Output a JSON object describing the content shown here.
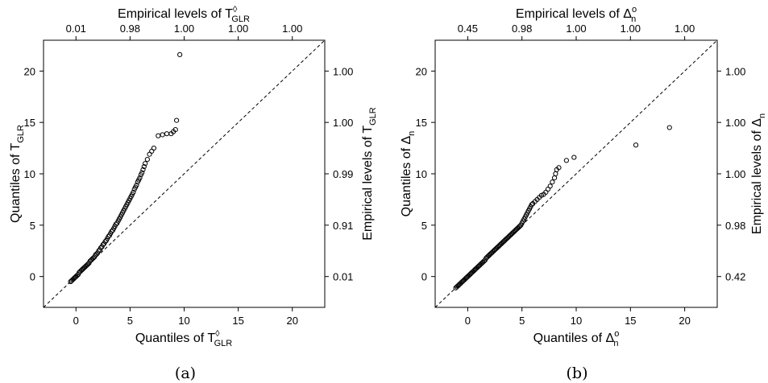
{
  "chart_data": [
    {
      "type": "scatter",
      "panel_label": "(a)",
      "xlabel": "Quantiles of T",
      "xlabel_sup": "◊",
      "xlabel_sub": "GLR",
      "ylabel": "Quantiles of T",
      "ylabel_sub": "GLR",
      "top_axis_label": "Empirical levels of T",
      "top_axis_sup": "◊",
      "top_axis_sub": "GLR",
      "right_axis_label": "Empirical levels of T",
      "right_axis_sub": "GLR",
      "xlim": [
        -3,
        23
      ],
      "ylim": [
        -3,
        23
      ],
      "x_ticks": [
        0,
        5,
        10,
        15,
        20
      ],
      "y_ticks": [
        0,
        5,
        10,
        15,
        20
      ],
      "x_tick_labels": [
        "0",
        "5",
        "10",
        "15",
        "20"
      ],
      "y_tick_labels": [
        "0",
        "5",
        "10",
        "15",
        "20"
      ],
      "top_tick_labels": [
        "0.01",
        "0.98",
        "1.00",
        "1.00",
        "1.00"
      ],
      "right_tick_labels": [
        "0.01",
        "0.91",
        "0.99",
        "1.00",
        "1.00"
      ],
      "reference_line": "y = x (dashed)",
      "points": [
        [
          -0.5,
          -0.5
        ],
        [
          -0.4,
          -0.4
        ],
        [
          -0.3,
          -0.3
        ],
        [
          -0.2,
          -0.2
        ],
        [
          -0.1,
          -0.1
        ],
        [
          0.0,
          0.0
        ],
        [
          0.1,
          0.1
        ],
        [
          0.2,
          0.2
        ],
        [
          0.3,
          0.4
        ],
        [
          0.4,
          0.5
        ],
        [
          0.5,
          0.6
        ],
        [
          0.6,
          0.7
        ],
        [
          0.7,
          0.8
        ],
        [
          0.8,
          0.9
        ],
        [
          0.9,
          1.0
        ],
        [
          1.0,
          1.1
        ],
        [
          1.1,
          1.2
        ],
        [
          1.2,
          1.3
        ],
        [
          1.3,
          1.5
        ],
        [
          1.4,
          1.6
        ],
        [
          1.5,
          1.7
        ],
        [
          1.6,
          1.8
        ],
        [
          1.7,
          1.9
        ],
        [
          1.8,
          2.1
        ],
        [
          1.9,
          2.2
        ],
        [
          2.0,
          2.3
        ],
        [
          2.1,
          2.5
        ],
        [
          2.2,
          2.6
        ],
        [
          2.3,
          2.8
        ],
        [
          2.4,
          2.9
        ],
        [
          2.5,
          3.1
        ],
        [
          2.6,
          3.2
        ],
        [
          2.7,
          3.4
        ],
        [
          2.8,
          3.5
        ],
        [
          2.9,
          3.7
        ],
        [
          3.0,
          3.9
        ],
        [
          3.1,
          4.0
        ],
        [
          3.2,
          4.2
        ],
        [
          3.3,
          4.4
        ],
        [
          3.4,
          4.5
        ],
        [
          3.5,
          4.7
        ],
        [
          3.6,
          4.9
        ],
        [
          3.7,
          5.1
        ],
        [
          3.8,
          5.2
        ],
        [
          3.9,
          5.4
        ],
        [
          4.0,
          5.6
        ],
        [
          4.1,
          5.8
        ],
        [
          4.2,
          6.0
        ],
        [
          4.3,
          6.2
        ],
        [
          4.4,
          6.4
        ],
        [
          4.5,
          6.6
        ],
        [
          4.6,
          6.8
        ],
        [
          4.7,
          7.0
        ],
        [
          4.8,
          7.2
        ],
        [
          4.9,
          7.4
        ],
        [
          5.0,
          7.6
        ],
        [
          5.1,
          7.8
        ],
        [
          5.2,
          8.0
        ],
        [
          5.3,
          8.2
        ],
        [
          5.4,
          8.5
        ],
        [
          5.5,
          8.7
        ],
        [
          5.6,
          8.9
        ],
        [
          5.7,
          9.2
        ],
        [
          5.8,
          9.4
        ],
        [
          5.9,
          9.6
        ],
        [
          6.0,
          9.9
        ],
        [
          6.1,
          10.1
        ],
        [
          6.2,
          10.4
        ],
        [
          6.3,
          10.7
        ],
        [
          6.4,
          11.0
        ],
        [
          6.6,
          11.4
        ],
        [
          6.8,
          11.9
        ],
        [
          7.0,
          12.2
        ],
        [
          7.2,
          12.5
        ],
        [
          7.6,
          13.7
        ],
        [
          8.0,
          13.8
        ],
        [
          8.4,
          13.9
        ],
        [
          8.8,
          13.9
        ],
        [
          9.0,
          14.1
        ],
        [
          9.2,
          14.3
        ],
        [
          9.3,
          15.2
        ],
        [
          9.6,
          21.6
        ]
      ]
    },
    {
      "type": "scatter",
      "panel_label": "(b)",
      "xlabel": "Quantiles of Δ",
      "xlabel_sup": "o",
      "xlabel_sub": "n",
      "ylabel": "Quantiles of Δ",
      "ylabel_sub": "n",
      "top_axis_label": "Empirical levels of Δ",
      "top_axis_sup": "o",
      "top_axis_sub": "n",
      "right_axis_label": "Empirical levels of Δ",
      "right_axis_sub": "n",
      "xlim": [
        -3,
        23
      ],
      "ylim": [
        -3,
        23
      ],
      "x_ticks": [
        0,
        5,
        10,
        15,
        20
      ],
      "y_ticks": [
        0,
        5,
        10,
        15,
        20
      ],
      "x_tick_labels": [
        "0",
        "5",
        "10",
        "15",
        "20"
      ],
      "y_tick_labels": [
        "0",
        "5",
        "10",
        "15",
        "20"
      ],
      "top_tick_labels": [
        "0.45",
        "0.98",
        "1.00",
        "1.00",
        "1.00"
      ],
      "right_tick_labels": [
        "0.42",
        "0.98",
        "1.00",
        "1.00",
        "1.00"
      ],
      "reference_line": "y = x (dashed)",
      "points": [
        [
          -1.1,
          -1.1
        ],
        [
          -1.0,
          -1.0
        ],
        [
          -0.9,
          -0.9
        ],
        [
          -0.8,
          -0.8
        ],
        [
          -0.7,
          -0.7
        ],
        [
          -0.6,
          -0.6
        ],
        [
          -0.5,
          -0.5
        ],
        [
          -0.4,
          -0.4
        ],
        [
          -0.3,
          -0.3
        ],
        [
          -0.2,
          -0.2
        ],
        [
          -0.1,
          -0.1
        ],
        [
          0.0,
          0.0
        ],
        [
          0.1,
          0.1
        ],
        [
          0.2,
          0.2
        ],
        [
          0.3,
          0.3
        ],
        [
          0.4,
          0.4
        ],
        [
          0.5,
          0.5
        ],
        [
          0.6,
          0.6
        ],
        [
          0.7,
          0.7
        ],
        [
          0.8,
          0.8
        ],
        [
          0.9,
          0.9
        ],
        [
          1.0,
          1.0
        ],
        [
          1.1,
          1.1
        ],
        [
          1.2,
          1.2
        ],
        [
          1.3,
          1.3
        ],
        [
          1.4,
          1.4
        ],
        [
          1.5,
          1.5
        ],
        [
          1.6,
          1.6
        ],
        [
          1.7,
          1.8
        ],
        [
          1.8,
          1.9
        ],
        [
          1.9,
          2.0
        ],
        [
          2.0,
          2.1
        ],
        [
          2.1,
          2.2
        ],
        [
          2.2,
          2.3
        ],
        [
          2.3,
          2.4
        ],
        [
          2.4,
          2.5
        ],
        [
          2.5,
          2.6
        ],
        [
          2.6,
          2.7
        ],
        [
          2.7,
          2.8
        ],
        [
          2.8,
          2.9
        ],
        [
          2.9,
          3.0
        ],
        [
          3.0,
          3.1
        ],
        [
          3.1,
          3.2
        ],
        [
          3.2,
          3.3
        ],
        [
          3.3,
          3.4
        ],
        [
          3.4,
          3.5
        ],
        [
          3.5,
          3.6
        ],
        [
          3.6,
          3.7
        ],
        [
          3.7,
          3.8
        ],
        [
          3.8,
          3.9
        ],
        [
          3.9,
          4.0
        ],
        [
          4.0,
          4.1
        ],
        [
          4.1,
          4.2
        ],
        [
          4.2,
          4.3
        ],
        [
          4.3,
          4.4
        ],
        [
          4.4,
          4.5
        ],
        [
          4.5,
          4.6
        ],
        [
          4.6,
          4.7
        ],
        [
          4.7,
          4.8
        ],
        [
          4.8,
          4.9
        ],
        [
          4.9,
          5.0
        ],
        [
          5.0,
          5.2
        ],
        [
          5.1,
          5.4
        ],
        [
          5.2,
          5.6
        ],
        [
          5.3,
          5.8
        ],
        [
          5.4,
          6.0
        ],
        [
          5.5,
          6.2
        ],
        [
          5.6,
          6.4
        ],
        [
          5.7,
          6.6
        ],
        [
          5.8,
          6.8
        ],
        [
          5.9,
          7.0
        ],
        [
          6.0,
          7.1
        ],
        [
          6.2,
          7.3
        ],
        [
          6.4,
          7.5
        ],
        [
          6.6,
          7.7
        ],
        [
          6.8,
          7.9
        ],
        [
          7.0,
          8.0
        ],
        [
          7.2,
          8.2
        ],
        [
          7.4,
          8.5
        ],
        [
          7.6,
          8.8
        ],
        [
          7.8,
          9.2
        ],
        [
          8.0,
          9.6
        ],
        [
          8.1,
          10.0
        ],
        [
          8.2,
          10.4
        ],
        [
          8.4,
          10.6
        ],
        [
          9.1,
          11.3
        ],
        [
          9.8,
          11.6
        ],
        [
          15.5,
          12.8
        ],
        [
          18.6,
          14.5
        ]
      ]
    }
  ]
}
